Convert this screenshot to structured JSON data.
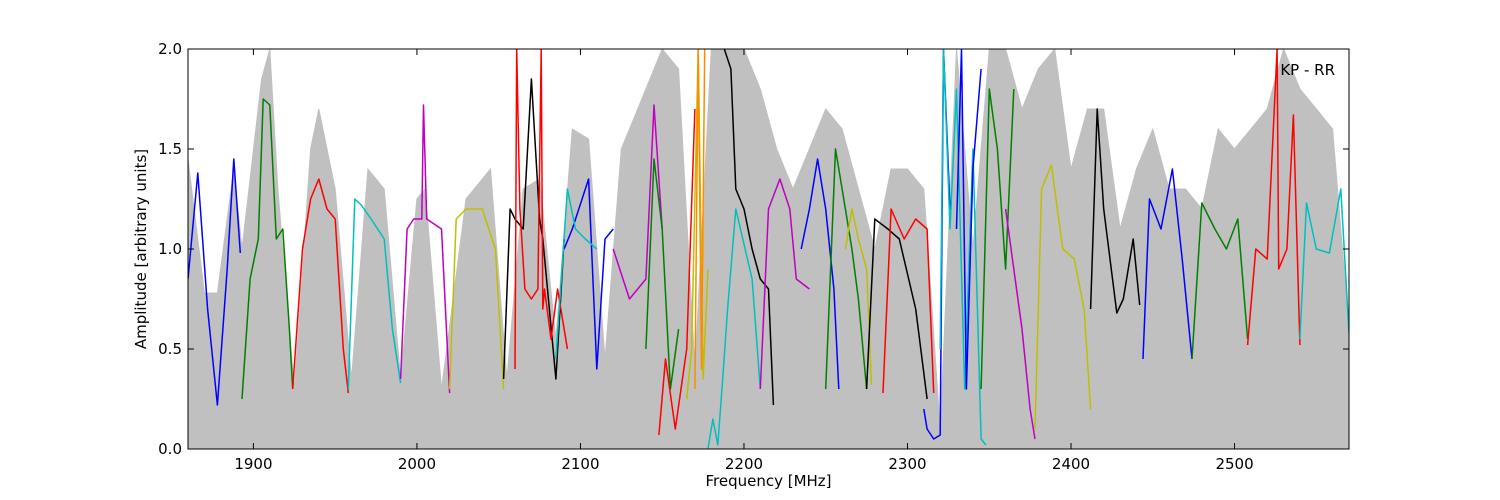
{
  "chart_data": {
    "type": "line",
    "title": "",
    "xlabel": "Frequency [MHz]",
    "ylabel": "Amplitude [arbitrary units]",
    "xlim": [
      1860,
      2570
    ],
    "ylim": [
      0.0,
      2.0
    ],
    "xticks": [
      1900,
      2000,
      2100,
      2200,
      2300,
      2400,
      2500
    ],
    "xtick_labels": [
      "1900",
      "2000",
      "2100",
      "2200",
      "2300",
      "2400",
      "2500"
    ],
    "yticks": [
      0.0,
      0.5,
      1.0,
      1.5,
      2.0
    ],
    "ytick_labels": [
      "0.0",
      "0.5",
      "1.0",
      "1.5",
      "2.0"
    ],
    "grid": false,
    "annotation": "KP - RR",
    "envelope": {
      "color": "#c0c0c0",
      "x": [
        1860,
        1870,
        1878,
        1888,
        1893,
        1905,
        1910,
        1915,
        1925,
        1935,
        1940,
        1950,
        1960,
        1970,
        1980,
        1990,
        2000,
        2005,
        2015,
        2030,
        2045,
        2055,
        2065,
        2075,
        2085,
        2095,
        2105,
        2115,
        2125,
        2140,
        2150,
        2160,
        2170,
        2180,
        2190,
        2200,
        2210,
        2220,
        2230,
        2240,
        2250,
        2260,
        2270,
        2280,
        2290,
        2300,
        2310,
        2320,
        2330,
        2340,
        2350,
        2360,
        2370,
        2380,
        2390,
        2400,
        2410,
        2420,
        2430,
        2440,
        2450,
        2460,
        2470,
        2480,
        2490,
        2500,
        2510,
        2520,
        2530,
        2540,
        2550,
        2560,
        2570
      ],
      "y": [
        1.45,
        0.78,
        0.78,
        1.4,
        1.0,
        1.85,
        2.0,
        1.3,
        0.3,
        1.5,
        1.7,
        1.3,
        0.35,
        1.4,
        1.3,
        0.35,
        1.25,
        1.3,
        0.3,
        1.25,
        1.4,
        0.35,
        1.3,
        1.35,
        0.55,
        1.6,
        1.55,
        0.45,
        1.5,
        1.8,
        2.0,
        1.9,
        0.4,
        2.0,
        2.0,
        2.0,
        1.8,
        1.5,
        1.3,
        1.5,
        1.7,
        1.6,
        1.3,
        1.0,
        1.4,
        1.4,
        1.3,
        0.1,
        2.0,
        1.0,
        2.0,
        2.0,
        1.7,
        1.9,
        2.0,
        1.4,
        1.7,
        1.7,
        1.1,
        1.4,
        1.6,
        1.3,
        1.3,
        1.2,
        1.6,
        1.5,
        1.6,
        1.7,
        2.0,
        1.8,
        1.7,
        1.6,
        0.6
      ]
    },
    "series": [
      {
        "color": "#0000ff",
        "x": [
          1860,
          1866,
          1872,
          1878,
          1884,
          1888,
          1892
        ],
        "y": [
          0.85,
          1.38,
          0.7,
          0.22,
          0.9,
          1.45,
          0.98
        ]
      },
      {
        "color": "#008000",
        "x": [
          1893,
          1898,
          1903,
          1906,
          1910,
          1914,
          1918,
          1922,
          1924
        ],
        "y": [
          0.25,
          0.85,
          1.05,
          1.75,
          1.72,
          1.05,
          1.1,
          0.6,
          0.3
        ]
      },
      {
        "color": "#ff0000",
        "x": [
          1924,
          1930,
          1935,
          1940,
          1945,
          1950,
          1955,
          1958
        ],
        "y": [
          0.3,
          1.0,
          1.25,
          1.35,
          1.2,
          1.15,
          0.5,
          0.28
        ]
      },
      {
        "color": "#00bfbf",
        "x": [
          1958,
          1962,
          1966,
          1972,
          1980,
          1985,
          1990
        ],
        "y": [
          0.3,
          1.25,
          1.22,
          1.15,
          1.05,
          0.6,
          0.33
        ]
      },
      {
        "color": "#bf00bf",
        "x": [
          1990,
          1994,
          1998,
          2003,
          2004,
          2006,
          2015,
          2020
        ],
        "y": [
          0.35,
          1.1,
          1.15,
          1.15,
          1.72,
          1.15,
          1.1,
          0.28
        ]
      },
      {
        "color": "#bfbf00",
        "x": [
          2020,
          2024,
          2030,
          2040,
          2048,
          2053
        ],
        "y": [
          0.3,
          1.15,
          1.2,
          1.2,
          1.0,
          0.3
        ]
      },
      {
        "color": "#000000",
        "x": [
          2053,
          2057,
          2060,
          2065,
          2070,
          2075,
          2077,
          2085,
          2090
        ],
        "y": [
          0.35,
          1.2,
          1.15,
          1.1,
          1.85,
          1.15,
          1.05,
          0.35,
          1.05
        ]
      },
      {
        "color": "#ff0000",
        "x": [
          2060,
          2061,
          2063,
          2066,
          2070,
          2074,
          2076,
          2077,
          2078,
          2082,
          2086,
          2092
        ],
        "y": [
          0.4,
          2.0,
          1.2,
          0.8,
          0.75,
          0.8,
          2.0,
          0.7,
          0.8,
          0.55,
          0.8,
          0.5
        ]
      },
      {
        "color": "#0000ff",
        "x": [
          2090,
          2095,
          2105,
          2110,
          2115,
          2120
        ],
        "y": [
          1.0,
          1.1,
          1.35,
          0.4,
          1.05,
          1.1
        ]
      },
      {
        "color": "#00bfbf",
        "x": [
          2085,
          2092,
          2097,
          2103,
          2110
        ],
        "y": [
          0.45,
          1.3,
          1.1,
          1.05,
          1.0
        ]
      },
      {
        "color": "#bf00bf",
        "x": [
          2120,
          2130,
          2140,
          2145,
          2150
        ],
        "y": [
          1.0,
          0.75,
          0.85,
          1.72,
          1.1
        ]
      },
      {
        "color": "#008000",
        "x": [
          2140,
          2145,
          2150,
          2155,
          2160
        ],
        "y": [
          0.5,
          1.45,
          1.1,
          0.3,
          0.6
        ]
      },
      {
        "color": "#ff0000",
        "x": [
          2148,
          2152,
          2158,
          2165,
          2170
        ],
        "y": [
          0.07,
          0.45,
          0.1,
          0.5,
          1.7
        ]
      },
      {
        "color": "#bfbf00",
        "x": [
          2165,
          2168,
          2172,
          2175,
          2178
        ],
        "y": [
          0.25,
          0.5,
          2.0,
          0.35,
          0.9
        ]
      },
      {
        "color": "#ff8c00",
        "x": [
          2170,
          2172,
          2174,
          2176
        ],
        "y": [
          0.3,
          2.0,
          0.4,
          2.0
        ]
      },
      {
        "color": "#00bfbf",
        "x": [
          2178,
          2181,
          2184,
          2187,
          2190,
          2195,
          2205,
          2210
        ],
        "y": [
          0.0,
          0.15,
          0.02,
          0.35,
          0.7,
          1.2,
          0.85,
          0.3
        ]
      },
      {
        "color": "#000000",
        "x": [
          2188,
          2192,
          2195,
          2200,
          2205,
          2210,
          2215,
          2218
        ],
        "y": [
          2.0,
          1.9,
          1.3,
          1.2,
          1.0,
          0.85,
          0.8,
          0.22
        ]
      },
      {
        "color": "#bf00bf",
        "x": [
          2210,
          2215,
          2222,
          2228,
          2232,
          2240
        ],
        "y": [
          0.3,
          1.2,
          1.35,
          1.2,
          0.85,
          0.8
        ]
      },
      {
        "color": "#0000ff",
        "x": [
          2235,
          2240,
          2245,
          2250,
          2255,
          2258
        ],
        "y": [
          1.0,
          1.2,
          1.45,
          1.2,
          0.8,
          0.3
        ]
      },
      {
        "color": "#008000",
        "x": [
          2250,
          2256,
          2262,
          2266,
          2270,
          2275
        ],
        "y": [
          0.3,
          1.5,
          1.2,
          1.0,
          0.75,
          0.3
        ]
      },
      {
        "color": "#bfbf00",
        "x": [
          2262,
          2266,
          2270,
          2275,
          2278
        ],
        "y": [
          1.0,
          1.2,
          1.05,
          0.9,
          0.32
        ]
      },
      {
        "color": "#000000",
        "x": [
          2275,
          2280,
          2288,
          2295,
          2305,
          2312
        ],
        "y": [
          0.3,
          1.15,
          1.1,
          1.05,
          0.7,
          0.25
        ]
      },
      {
        "color": "#ff0000",
        "x": [
          2285,
          2290,
          2298,
          2305,
          2312,
          2316
        ],
        "y": [
          0.28,
          1.2,
          1.05,
          1.15,
          1.1,
          0.28
        ]
      },
      {
        "color": "#0000ff",
        "x": [
          2310,
          2312,
          2316,
          2320,
          2322,
          2326
        ],
        "y": [
          0.2,
          0.1,
          0.05,
          0.07,
          2.0,
          1.2
        ]
      },
      {
        "color": "#00bfbf",
        "x": [
          2320,
          2322,
          2326,
          2330,
          2335,
          2340,
          2345,
          2348
        ],
        "y": [
          0.5,
          2.0,
          1.1,
          1.8,
          0.3,
          1.5,
          0.05,
          0.02
        ]
      },
      {
        "color": "#0000ff",
        "x": [
          2330,
          2333,
          2336,
          2340,
          2345
        ],
        "y": [
          1.1,
          2.0,
          0.3,
          1.4,
          1.9
        ]
      },
      {
        "color": "#008000",
        "x": [
          2345,
          2350,
          2355,
          2360,
          2365
        ],
        "y": [
          0.3,
          1.8,
          1.5,
          0.9,
          1.8
        ]
      },
      {
        "color": "#bf00bf",
        "x": [
          2360,
          2365,
          2370,
          2375,
          2378
        ],
        "y": [
          1.2,
          0.9,
          0.6,
          0.2,
          0.05
        ]
      },
      {
        "color": "#bfbf00",
        "x": [
          2378,
          2382,
          2388,
          2395,
          2402,
          2408,
          2412
        ],
        "y": [
          0.1,
          1.3,
          1.42,
          1.0,
          0.95,
          0.7,
          0.2
        ]
      },
      {
        "color": "#000000",
        "x": [
          2412,
          2416,
          2420,
          2428,
          2432,
          2438,
          2442
        ],
        "y": [
          0.7,
          1.7,
          1.2,
          0.68,
          0.75,
          1.05,
          0.72
        ]
      },
      {
        "color": "#0000ff",
        "x": [
          2444,
          2448,
          2455,
          2462,
          2468,
          2474
        ],
        "y": [
          0.45,
          1.25,
          1.1,
          1.4,
          0.95,
          0.45
        ]
      },
      {
        "color": "#008000",
        "x": [
          2474,
          2480,
          2488,
          2495,
          2502,
          2508
        ],
        "y": [
          0.45,
          1.23,
          1.1,
          1.0,
          1.15,
          0.55
        ]
      },
      {
        "color": "#ff0000",
        "x": [
          2508,
          2513,
          2520,
          2526,
          2527,
          2532,
          2536,
          2540
        ],
        "y": [
          0.52,
          1.0,
          0.95,
          2.0,
          0.9,
          1.0,
          1.67,
          0.52
        ]
      },
      {
        "color": "#00bfbf",
        "x": [
          2540,
          2544,
          2550,
          2558,
          2565,
          2570
        ],
        "y": [
          0.55,
          1.23,
          1.0,
          0.98,
          1.3,
          0.58
        ]
      }
    ]
  }
}
